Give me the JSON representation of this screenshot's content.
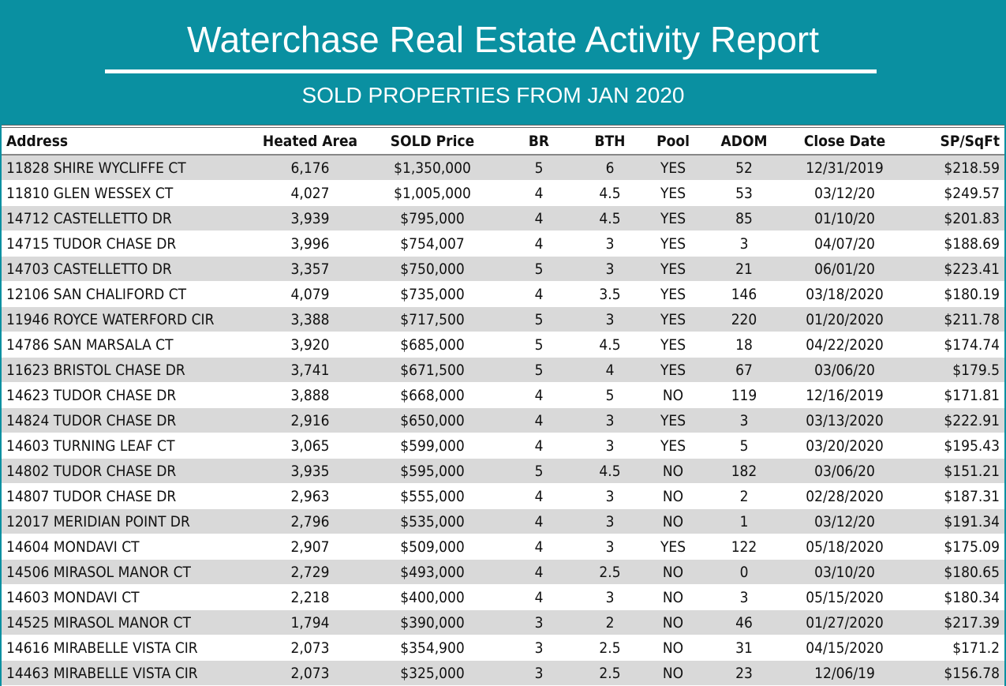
{
  "header": {
    "title": "Waterchase Real Estate Activity Report",
    "subtitle": "SOLD PROPERTIES FROM JAN 2020"
  },
  "colors": {
    "banner": "#0a90a1",
    "row_alt": "#d9d9d9"
  },
  "table": {
    "columns": [
      "Address",
      "Heated Area",
      "SOLD Price",
      "BR",
      "BTH",
      "Pool",
      "ADOM",
      "Close Date",
      "SP/SqFt"
    ],
    "rows": [
      [
        "11828 SHIRE WYCLIFFE CT",
        "6,176",
        "$1,350,000",
        "5",
        "6",
        "YES",
        "52",
        "12/31/2019",
        "$218.59"
      ],
      [
        "11810 GLEN WESSEX CT",
        "4,027",
        "$1,005,000",
        "4",
        "4.5",
        "YES",
        "53",
        "03/12/20",
        "$249.57"
      ],
      [
        "14712 CASTELLETTO DR",
        "3,939",
        "$795,000",
        "4",
        "4.5",
        "YES",
        "85",
        "01/10/20",
        "$201.83"
      ],
      [
        "14715 TUDOR CHASE DR",
        "3,996",
        "$754,007",
        "4",
        "3",
        "YES",
        "3",
        "04/07/20",
        "$188.69"
      ],
      [
        "14703 CASTELLETTO DR",
        "3,357",
        "$750,000",
        "5",
        "3",
        "YES",
        "21",
        "06/01/20",
        "$223.41"
      ],
      [
        "12106 SAN CHALIFORD CT",
        "4,079",
        "$735,000",
        "4",
        "3.5",
        "YES",
        "146",
        "03/18/2020",
        "$180.19"
      ],
      [
        "11946 ROYCE WATERFORD CIR",
        "3,388",
        "$717,500",
        "5",
        "3",
        "YES",
        "220",
        "01/20/2020",
        "$211.78"
      ],
      [
        "14786 SAN MARSALA CT",
        "3,920",
        "$685,000",
        "5",
        "4.5",
        "YES",
        "18",
        "04/22/2020",
        "$174.74"
      ],
      [
        "11623 BRISTOL CHASE DR",
        "3,741",
        "$671,500",
        "5",
        "4",
        "YES",
        "67",
        "03/06/20",
        "$179.5"
      ],
      [
        "14623 TUDOR CHASE DR",
        "3,888",
        "$668,000",
        "4",
        "5",
        "NO",
        "119",
        "12/16/2019",
        "$171.81"
      ],
      [
        "14824 TUDOR CHASE DR",
        "2,916",
        "$650,000",
        "4",
        "3",
        "YES",
        "3",
        "03/13/2020",
        "$222.91"
      ],
      [
        "14603 TURNING LEAF CT",
        "3,065",
        "$599,000",
        "4",
        "3",
        "YES",
        "5",
        "03/20/2020",
        "$195.43"
      ],
      [
        "14802 TUDOR CHASE DR",
        "3,935",
        "$595,000",
        "5",
        "4.5",
        "NO",
        "182",
        "03/06/20",
        "$151.21"
      ],
      [
        "14807 TUDOR CHASE DR",
        "2,963",
        "$555,000",
        "4",
        "3",
        "NO",
        "2",
        "02/28/2020",
        "$187.31"
      ],
      [
        "12017 MERIDIAN POINT DR",
        "2,796",
        "$535,000",
        "4",
        "3",
        "NO",
        "1",
        "03/12/20",
        "$191.34"
      ],
      [
        "14604 MONDAVI CT",
        "2,907",
        "$509,000",
        "4",
        "3",
        "YES",
        "122",
        "05/18/2020",
        "$175.09"
      ],
      [
        "14506 MIRASOL MANOR CT",
        "2,729",
        "$493,000",
        "4",
        "2.5",
        "NO",
        "0",
        "03/10/20",
        "$180.65"
      ],
      [
        "14603 MONDAVI CT",
        "2,218",
        "$400,000",
        "4",
        "3",
        "NO",
        "3",
        "05/15/2020",
        "$180.34"
      ],
      [
        "14525 MIRASOL MANOR CT",
        "1,794",
        "$390,000",
        "3",
        "2",
        "NO",
        "46",
        "01/27/2020",
        "$217.39"
      ],
      [
        "14616 MIRABELLE VISTA CIR",
        "2,073",
        "$354,900",
        "3",
        "2.5",
        "NO",
        "31",
        "04/15/2020",
        "$171.2"
      ],
      [
        "14463 MIRABELLE VISTA CIR",
        "2,073",
        "$325,000",
        "3",
        "2.5",
        "NO",
        "23",
        "12/06/19",
        "$156.78"
      ]
    ]
  }
}
